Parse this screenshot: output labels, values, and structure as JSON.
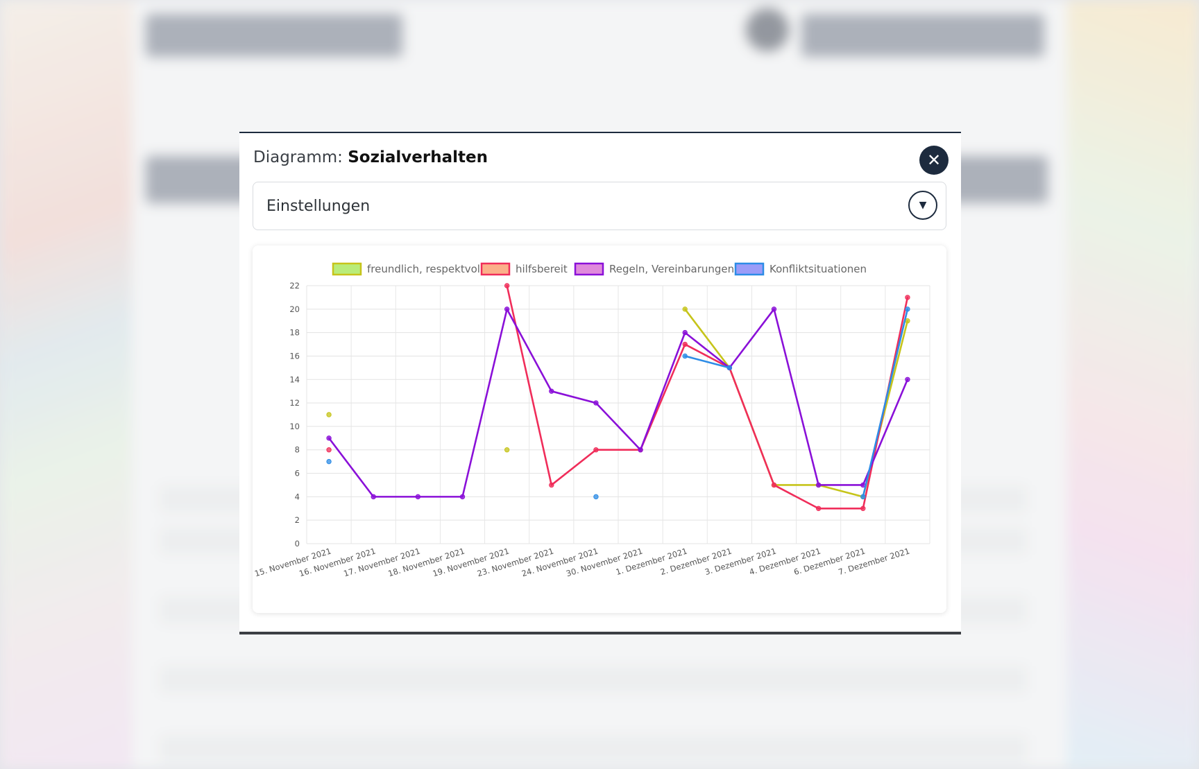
{
  "modal": {
    "title_prefix": "Diagramm: ",
    "title_name": "Sozialverhalten",
    "close_icon": "close-icon",
    "settings_label": "Einstellungen",
    "settings_icon": "chevron-down-icon"
  },
  "colors": {
    "freundlich": "#c6c41a",
    "hilfsbereit": "#f02d5a",
    "regeln": "#8a10d8",
    "konflikt": "#2d8ce6"
  },
  "chart_data": {
    "type": "line",
    "title": "",
    "xlabel": "",
    "ylabel": "",
    "ylim": [
      0,
      22
    ],
    "yticks": [
      0,
      2,
      4,
      6,
      8,
      10,
      12,
      14,
      16,
      18,
      20,
      22
    ],
    "grid": true,
    "legend_position": "top",
    "categories": [
      "15. November 2021",
      "16. November 2021",
      "17. November 2021",
      "18. November 2021",
      "19. November 2021",
      "23. November 2021",
      "24. November 2021",
      "30. November 2021",
      "1. Dezember 2021",
      "2. Dezember 2021",
      "3. Dezember 2021",
      "4. Dezember 2021",
      "6. Dezember 2021",
      "7. Dezember 2021"
    ],
    "series": [
      {
        "name": "freundlich, respektvoll",
        "color_key": "freundlich",
        "points": [
          [
            0.5,
            11
          ],
          [
            4.5,
            8
          ],
          [
            8.5,
            20
          ],
          [
            9.5,
            15
          ],
          [
            10.5,
            5
          ],
          [
            11.5,
            5
          ],
          [
            12.5,
            4
          ],
          [
            13.5,
            19
          ]
        ]
      },
      {
        "name": "hilfsbereit",
        "color_key": "hilfsbereit",
        "points": [
          [
            0.5,
            8
          ],
          [
            4.5,
            22
          ],
          [
            5.5,
            5
          ],
          [
            6.5,
            8
          ],
          [
            7.5,
            8
          ],
          [
            8.5,
            17
          ],
          [
            9.5,
            15
          ],
          [
            10.5,
            5
          ],
          [
            11.5,
            3
          ],
          [
            12.5,
            3
          ],
          [
            13.5,
            21
          ]
        ]
      },
      {
        "name": "Regeln, Vereinbarungen",
        "color_key": "regeln",
        "points": [
          [
            0.5,
            9
          ],
          [
            1.5,
            4
          ],
          [
            2.5,
            4
          ],
          [
            3.5,
            4
          ],
          [
            4.5,
            20
          ],
          [
            5.5,
            13
          ],
          [
            6.5,
            12
          ],
          [
            7.5,
            8
          ],
          [
            8.5,
            18
          ],
          [
            9.5,
            15
          ],
          [
            10.5,
            20
          ],
          [
            11.5,
            5
          ],
          [
            12.5,
            5
          ],
          [
            13.5,
            14
          ]
        ]
      },
      {
        "name": "Konfliktsituationen",
        "color_key": "konflikt",
        "points": [
          [
            0.5,
            7
          ],
          [
            6.5,
            4
          ],
          [
            8.5,
            16
          ],
          [
            9.5,
            15
          ],
          [
            12.5,
            4
          ],
          [
            13.5,
            20
          ]
        ]
      }
    ]
  }
}
